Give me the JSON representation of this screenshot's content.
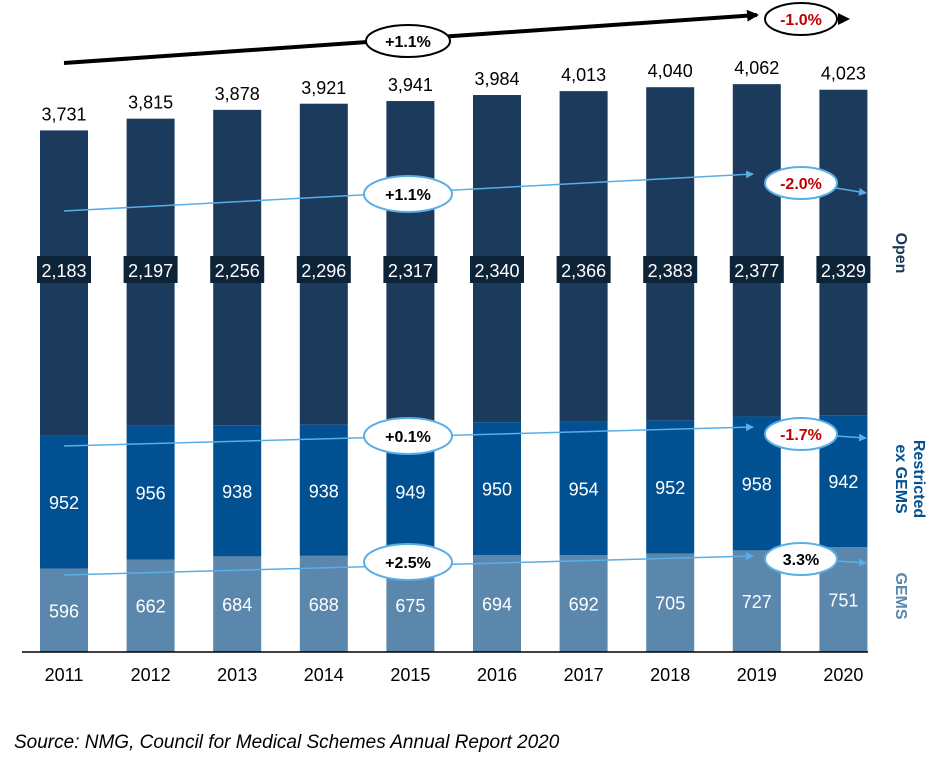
{
  "chart_data": {
    "type": "bar",
    "stacked": true,
    "categories": [
      "2011",
      "2012",
      "2013",
      "2014",
      "2015",
      "2016",
      "2017",
      "2018",
      "2019",
      "2020"
    ],
    "totals": [
      3731,
      3815,
      3878,
      3921,
      3941,
      3984,
      4013,
      4040,
      4062,
      4023
    ],
    "total_labels": [
      "3,731",
      "3,815",
      "3,878",
      "3,921",
      "3,941",
      "3,984",
      "4,013",
      "4,040",
      "4,062",
      "4,023"
    ],
    "series": [
      {
        "name": "GEMS",
        "values": [
          596,
          662,
          684,
          688,
          675,
          694,
          692,
          705,
          727,
          751
        ],
        "labels": [
          "596",
          "662",
          "684",
          "688",
          "675",
          "694",
          "692",
          "705",
          "727",
          "751"
        ],
        "color": "#5b87ad",
        "cagr": "+2.5%",
        "last_change": "3.3%",
        "last_change_color": "#000000"
      },
      {
        "name": "Restricted ex GEMS",
        "values": [
          952,
          956,
          938,
          938,
          949,
          950,
          954,
          952,
          958,
          942
        ],
        "labels": [
          "952",
          "956",
          "938",
          "938",
          "949",
          "950",
          "954",
          "952",
          "958",
          "942"
        ],
        "color": "#005092",
        "cagr": "+0.1%",
        "last_change": "-1.7%",
        "last_change_color": "#c00000"
      },
      {
        "name": "Open",
        "values": [
          2183,
          2197,
          2256,
          2296,
          2317,
          2340,
          2366,
          2383,
          2377,
          2329
        ],
        "labels": [
          "2,183",
          "2,197",
          "2,256",
          "2,296",
          "2,317",
          "2,340",
          "2,366",
          "2,383",
          "2,377",
          "2,329"
        ],
        "color": "#1b3a5c",
        "cagr": "+1.1%",
        "last_change": "-2.0%",
        "last_change_color": "#c00000"
      }
    ],
    "total_cagr": "+1.1%",
    "total_last_change": "-1.0%",
    "total_last_change_color": "#c00000",
    "series_label_lines": {
      "Open": [
        "Open"
      ],
      "Restricted ex GEMS": [
        "Restricted",
        "ex GEMS"
      ],
      "GEMS": [
        "GEMS"
      ]
    },
    "ylim": [
      0,
      4200
    ],
    "grid": false,
    "legend": "right, vertical series labels",
    "arrow_color": "#5aaee6",
    "title": "",
    "xlabel": "",
    "ylabel": ""
  },
  "source": "Source: NMG, Council for Medical Schemes Annual Report 2020"
}
